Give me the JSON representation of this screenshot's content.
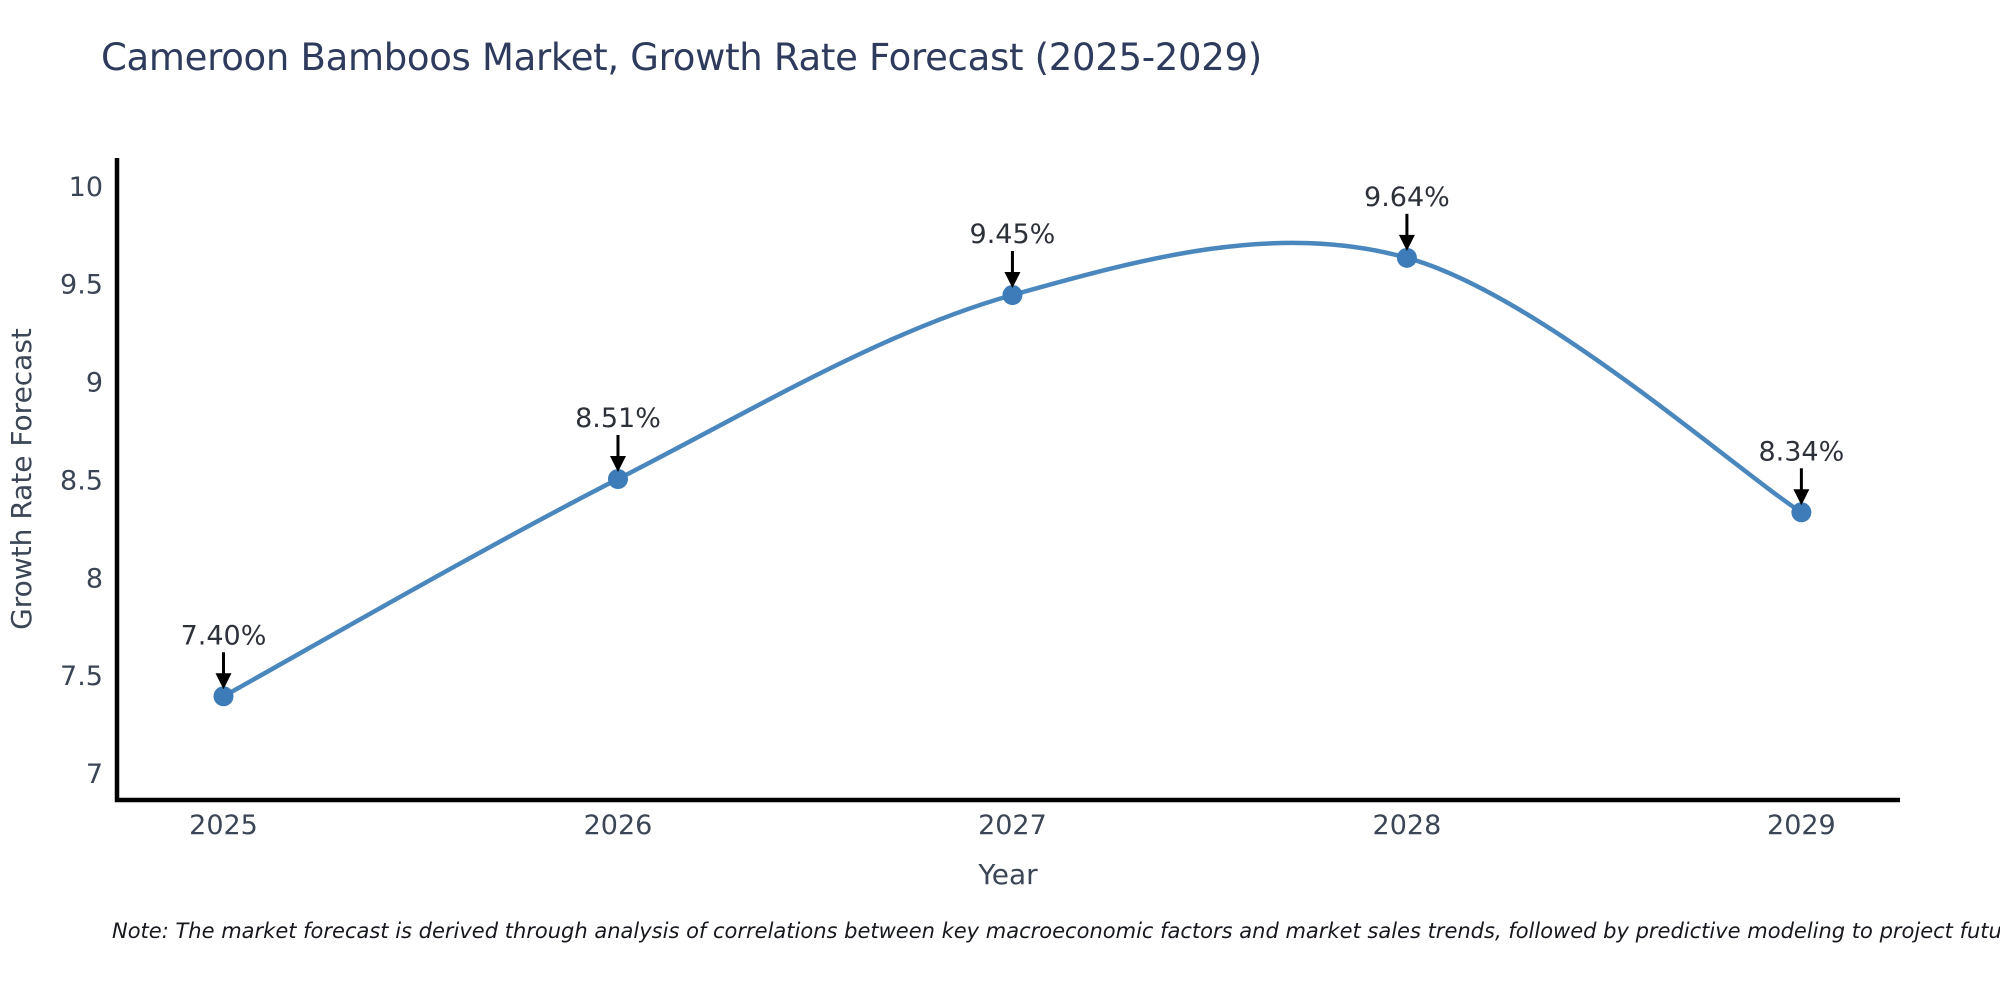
{
  "title": "Cameroon Bamboos Market, Growth Rate Forecast (2025-2029)",
  "note": "Note: The market forecast is derived through analysis of correlations between key macroeconomic factors and market sales trends, followed by predictive modeling to project future sales",
  "chart_data": {
    "type": "line",
    "title": "Cameroon Bamboos Market, Growth Rate Forecast (2025-2029)",
    "x": [
      2025,
      2026,
      2027,
      2028,
      2029
    ],
    "xtick_labels": [
      "2025",
      "2026",
      "2027",
      "2028",
      "2029"
    ],
    "values": [
      7.4,
      8.51,
      9.45,
      9.64,
      8.34
    ],
    "point_labels": [
      "7.40%",
      "8.51%",
      "9.45%",
      "9.64%",
      "8.34%"
    ],
    "xlabel": "Year",
    "ylabel": "Growth Rate Forecast",
    "yticks": [
      7,
      7.5,
      8,
      8.5,
      9,
      9.5,
      10
    ],
    "ytick_labels": [
      "7",
      "7.5",
      "8",
      "8.5",
      "9",
      "9.5",
      "10"
    ],
    "xlim": [
      2024.73,
      2029.25
    ],
    "ylim": [
      6.87,
      10.15
    ],
    "grid": false,
    "legend": "none",
    "smooth_spline": true,
    "colors": {
      "line": "#4a87bd",
      "marker": "#3d7cb8",
      "axis": "#000000",
      "tick_text": "#3b4556",
      "annotation_text": "#2d3139",
      "annotation_arrow": "#000000",
      "title_text": "#2e3b5c",
      "background": "#ffffff"
    }
  }
}
